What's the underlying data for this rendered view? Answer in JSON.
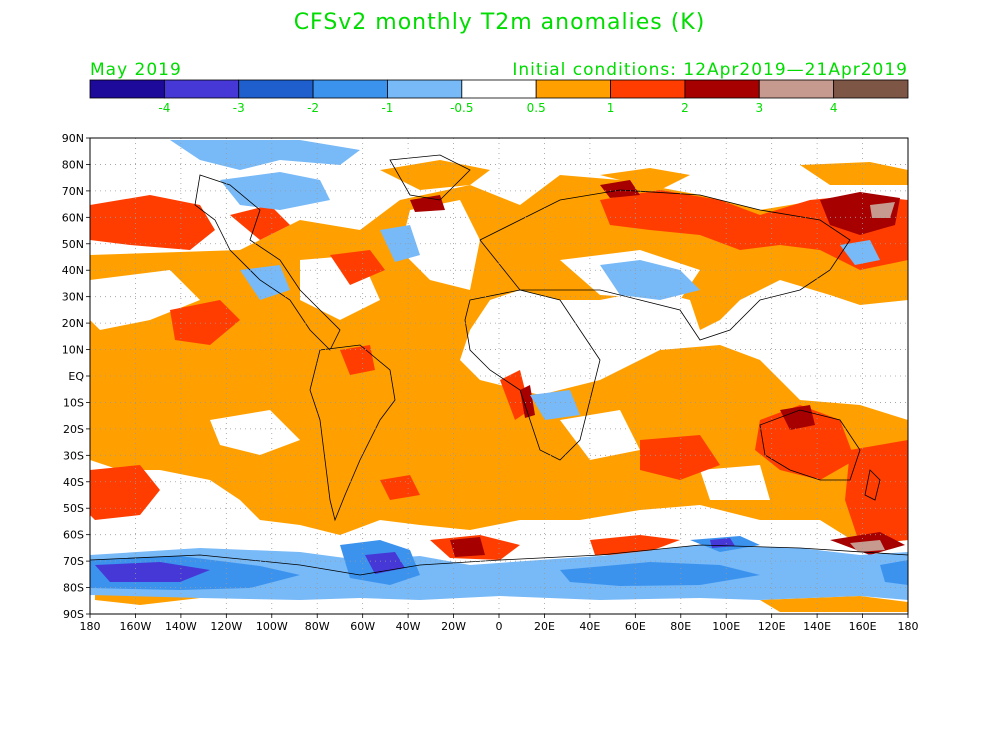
{
  "title": "CFSv2 monthly T2m anomalies (K)",
  "valid_month": "May 2019",
  "initial_conditions": "Initial conditions: 12Apr2019—21Apr2019",
  "legend": {
    "colors": [
      "#1e0a9a",
      "#4638d6",
      "#1e5fcd",
      "#3c93ee",
      "#78b9f7",
      "#ffffff",
      "#ffa000",
      "#ff3d00",
      "#a60000",
      "#c69a8e",
      "#7e5646"
    ],
    "labels": [
      "-4",
      "-3",
      "-2",
      "-1",
      "-0.5",
      "0.5",
      "1",
      "2",
      "3",
      "4"
    ]
  },
  "lat_labels": [
    "90N",
    "80N",
    "70N",
    "60N",
    "50N",
    "40N",
    "30N",
    "20N",
    "10N",
    "EQ",
    "10S",
    "20S",
    "30S",
    "40S",
    "50S",
    "60S",
    "70S",
    "80S",
    "90S"
  ],
  "lon_labels": [
    "180",
    "160W",
    "140W",
    "120W",
    "100W",
    "80W",
    "60W",
    "40W",
    "20W",
    "0",
    "20E",
    "40E",
    "60E",
    "80E",
    "100E",
    "120E",
    "140E",
    "160E",
    "180"
  ]
}
